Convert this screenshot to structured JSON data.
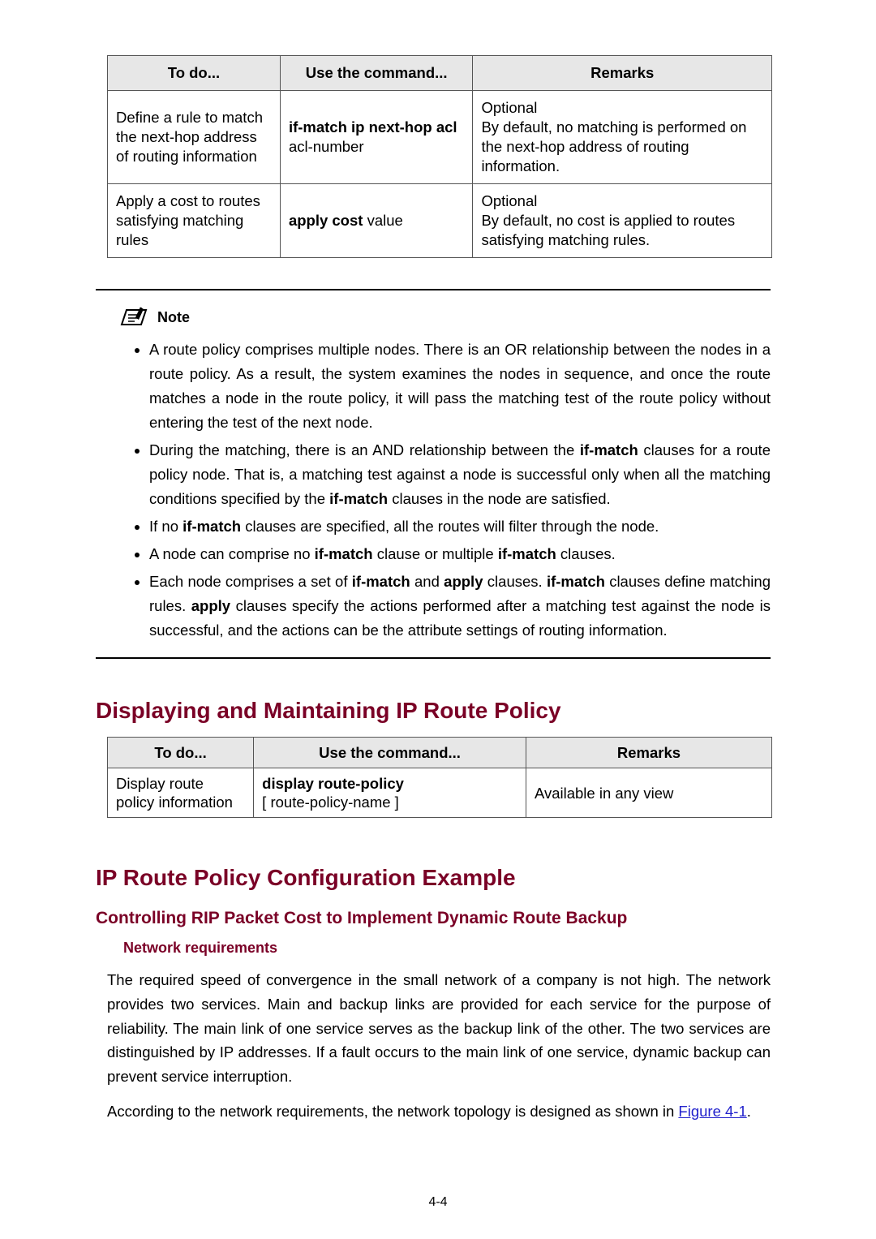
{
  "table1": {
    "headers": [
      "To do...",
      "Use the command...",
      "Remarks"
    ],
    "rows": [
      {
        "todo": "Define a rule to match the next-hop address of routing information",
        "cmd_bold": "if-match ip next-hop  acl",
        "cmd_rest": "acl-number",
        "remark1": "Optional",
        "remark2": "By default, no matching is performed on the next-hop address of routing information."
      },
      {
        "todo": "Apply a cost to routes satisfying matching rules",
        "cmd_bold": "apply cost",
        "cmd_rest": " value",
        "remark1": "Optional",
        "remark2": "By default, no cost is applied to routes satisfying matching rules."
      }
    ]
  },
  "note": {
    "label": "Note",
    "items": [
      {
        "parts": [
          {
            "t": "A route policy comprises multiple nodes. There is an OR relationship between the nodes in a route policy. As a result, the system examines the nodes in sequence, and once the route matches a node in the route policy, it will pass the matching test of the route policy without entering the test of the next node."
          }
        ]
      },
      {
        "parts": [
          {
            "t": "During the matching, there is an AND relationship between the "
          },
          {
            "t": "if-match",
            "b": true
          },
          {
            "t": " clauses for a route policy node. That is, a matching test against a node is successful only when all the matching conditions specified by the "
          },
          {
            "t": "if-match",
            "b": true
          },
          {
            "t": " clauses in the node are satisfied."
          }
        ]
      },
      {
        "parts": [
          {
            "t": "If no "
          },
          {
            "t": "if-match",
            "b": true
          },
          {
            "t": " clauses are specified, all the routes will filter through the node."
          }
        ]
      },
      {
        "parts": [
          {
            "t": "A node can comprise no "
          },
          {
            "t": "if-match",
            "b": true
          },
          {
            "t": " clause or multiple "
          },
          {
            "t": "if-match",
            "b": true
          },
          {
            "t": " clauses."
          }
        ]
      },
      {
        "parts": [
          {
            "t": "Each node comprises a set of "
          },
          {
            "t": "if-match",
            "b": true
          },
          {
            "t": " and "
          },
          {
            "t": "apply",
            "b": true
          },
          {
            "t": " clauses. "
          },
          {
            "t": "if-match",
            "b": true
          },
          {
            "t": " clauses define matching rules. "
          },
          {
            "t": "apply",
            "b": true
          },
          {
            "t": " clauses specify the actions performed after a matching test against the node is successful, and the actions can be the attribute settings of routing information."
          }
        ]
      }
    ]
  },
  "section1": {
    "title": "Displaying and Maintaining IP Route Policy"
  },
  "table2": {
    "headers": [
      "To do...",
      "Use the command...",
      "Remarks"
    ],
    "row": {
      "todo": "Display route policy information",
      "cmd_bold": "display route-policy",
      "cmd_rest": "[ route-policy-name ]",
      "remark": "Available in any view"
    }
  },
  "section2": {
    "title": "IP Route Policy Configuration Example",
    "sub": "Controlling RIP Packet Cost to Implement Dynamic Route Backup",
    "subsub": "Network requirements",
    "p1": "The required speed of convergence in the small network of a company is not high. The network provides two services. Main and backup links are provided for each service for the purpose of reliability. The main link of one service serves as the backup link of the other. The two services are distinguished by IP addresses. If a fault occurs to the main link of one service, dynamic backup can prevent service interruption.",
    "p2_a": "According to the network requirements, the network topology is designed as shown in ",
    "p2_link": "Figure 4-1",
    "p2_b": "."
  },
  "pagenum": "4-4",
  "colors": {
    "heading": "#7a0026",
    "link": "#2222cc",
    "border": "#555555",
    "th_bg": "#e7e7e7"
  }
}
